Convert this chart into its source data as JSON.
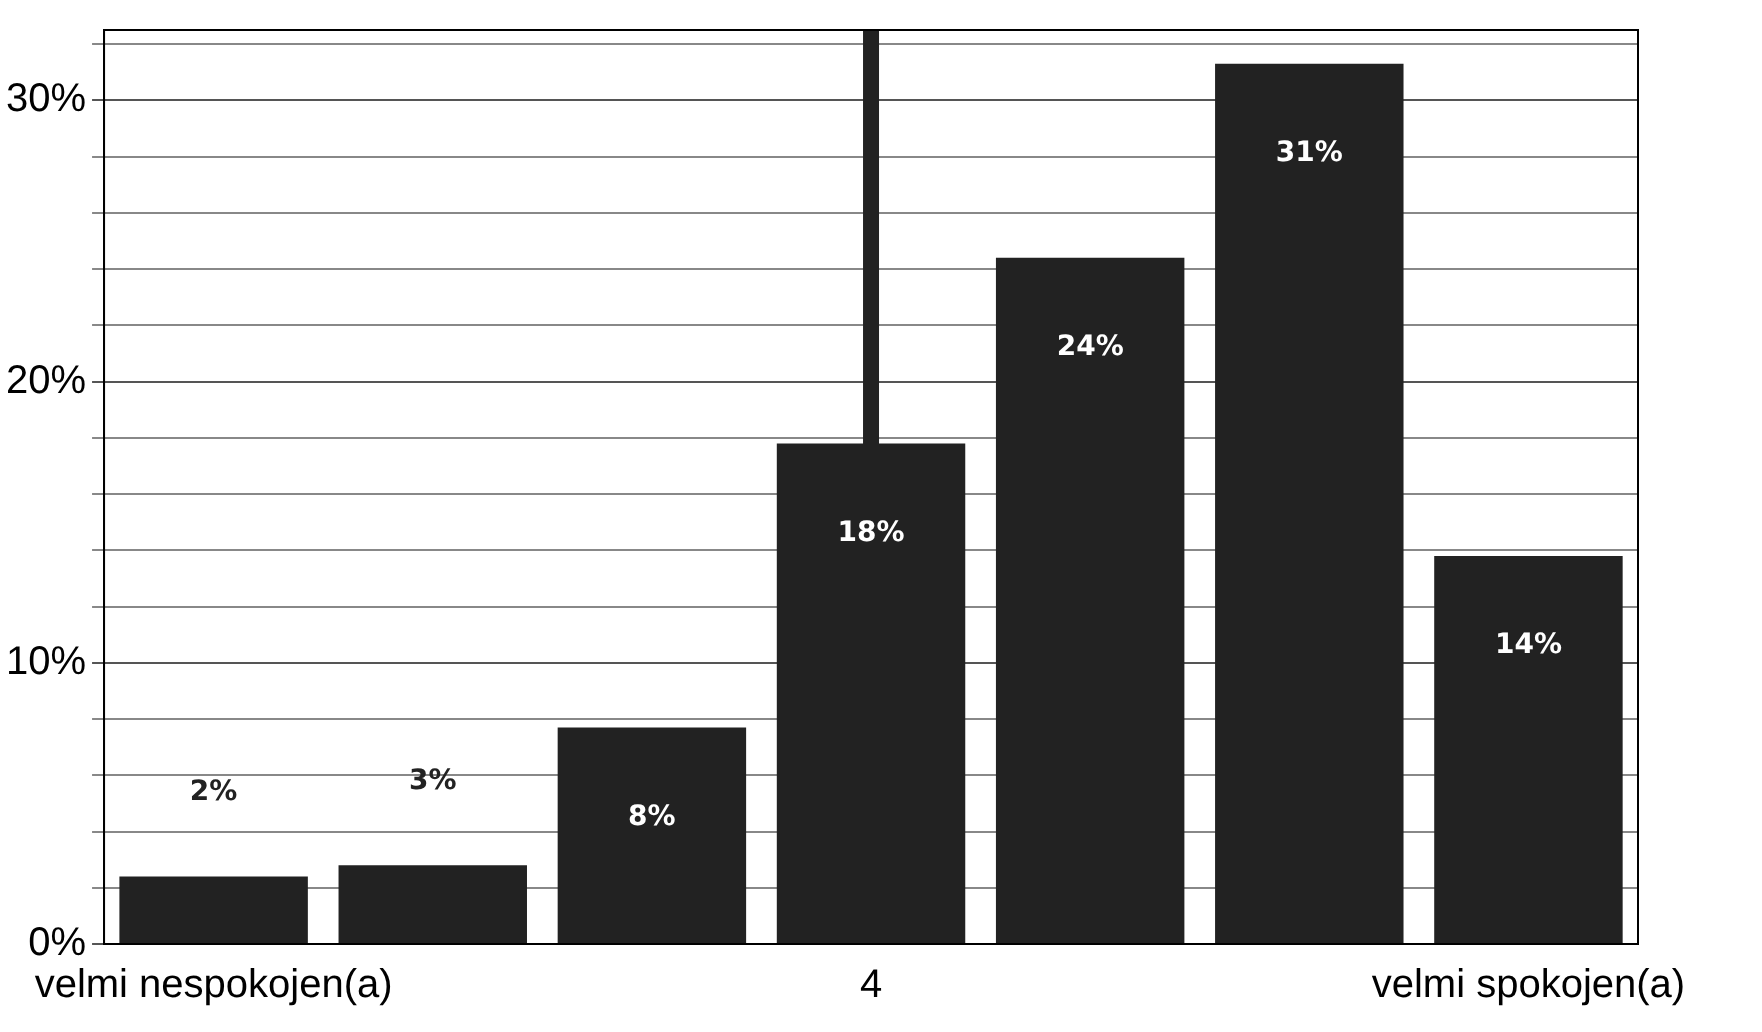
{
  "chart_data": {
    "type": "bar",
    "categories": [
      "velmi nespokojen(a)",
      null,
      null,
      "4",
      null,
      null,
      "velmi spokojen(a)"
    ],
    "values": [
      2.4,
      2.8,
      7.7,
      17.8,
      24.4,
      31.3,
      13.8
    ],
    "value_labels": [
      "2%",
      "3%",
      "8%",
      "18%",
      "24%",
      "31%",
      "14%"
    ],
    "color": "#222222",
    "ylim": [
      0,
      32.5
    ],
    "yticks": [
      {
        "value": 0,
        "label": "0%"
      },
      {
        "value": 2,
        "label": null
      },
      {
        "value": 4,
        "label": null
      },
      {
        "value": 6,
        "label": null
      },
      {
        "value": 8,
        "label": null
      },
      {
        "value": 10,
        "label": "10%"
      },
      {
        "value": 12,
        "label": null
      },
      {
        "value": 14,
        "label": null
      },
      {
        "value": 16,
        "label": null
      },
      {
        "value": 18,
        "label": null
      },
      {
        "value": 20,
        "label": "20%"
      },
      {
        "value": 22,
        "label": null
      },
      {
        "value": 24,
        "label": null
      },
      {
        "value": 26,
        "label": null
      },
      {
        "value": 28,
        "label": null
      },
      {
        "value": 30,
        "label": "30%"
      },
      {
        "value": 32,
        "label": null
      }
    ],
    "ref_lines": [
      {
        "axis": "x",
        "value": "4",
        "color": "#222222"
      }
    ],
    "grid": "y",
    "legend": false
  }
}
